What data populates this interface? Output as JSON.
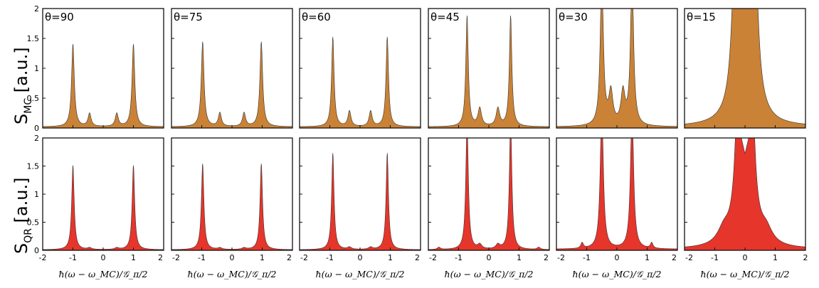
{
  "figure": {
    "x_axis_label": "ħ(ω − ω_MC)/𝒢_π/2",
    "rows": [
      {
        "id": "MC",
        "y_label_main": "S",
        "y_label_sub": "MC",
        "y_label_unit": " [a.u.]",
        "color": "#c98236"
      },
      {
        "id": "QR",
        "y_label_main": "S",
        "y_label_sub": "QR",
        "y_label_unit": " [a.u.]",
        "color": "#e6352b"
      }
    ],
    "x_tick_labels": [
      "-2",
      "-1",
      "0",
      "1",
      "2"
    ],
    "y_tick_labels": [
      "0",
      "0.5",
      "1",
      "1.5",
      "2"
    ]
  },
  "chart_data": [
    {
      "type": "area",
      "row": "MC",
      "theta_label": "θ=90",
      "xlim": [
        -2,
        2
      ],
      "ylim": [
        0,
        2
      ],
      "peaks": [
        {
          "x": -1.0,
          "height": 1.38,
          "width": 0.055
        },
        {
          "x": 1.0,
          "height": 1.38,
          "width": 0.055
        },
        {
          "x": -0.45,
          "height": 0.22,
          "width": 0.06
        },
        {
          "x": 0.45,
          "height": 0.22,
          "width": 0.06
        }
      ],
      "baseline": 0.02
    },
    {
      "type": "area",
      "row": "MC",
      "theta_label": "θ=75",
      "xlim": [
        -2,
        2
      ],
      "ylim": [
        0,
        2
      ],
      "peaks": [
        {
          "x": -0.97,
          "height": 1.42,
          "width": 0.055
        },
        {
          "x": 0.97,
          "height": 1.42,
          "width": 0.055
        },
        {
          "x": -0.4,
          "height": 0.23,
          "width": 0.06
        },
        {
          "x": 0.4,
          "height": 0.23,
          "width": 0.06
        }
      ],
      "baseline": 0.02
    },
    {
      "type": "area",
      "row": "MC",
      "theta_label": "θ=60",
      "xlim": [
        -2,
        2
      ],
      "ylim": [
        0,
        2
      ],
      "peaks": [
        {
          "x": -0.9,
          "height": 1.5,
          "width": 0.05
        },
        {
          "x": 0.9,
          "height": 1.5,
          "width": 0.05
        },
        {
          "x": -0.35,
          "height": 0.26,
          "width": 0.06
        },
        {
          "x": 0.35,
          "height": 0.26,
          "width": 0.06
        }
      ],
      "baseline": 0.02
    },
    {
      "type": "area",
      "row": "MC",
      "theta_label": "θ=45",
      "xlim": [
        -2,
        2
      ],
      "ylim": [
        0,
        2
      ],
      "peaks": [
        {
          "x": -0.72,
          "height": 1.85,
          "width": 0.05
        },
        {
          "x": 0.72,
          "height": 1.85,
          "width": 0.05
        },
        {
          "x": -0.3,
          "height": 0.3,
          "width": 0.07
        },
        {
          "x": 0.3,
          "height": 0.3,
          "width": 0.07
        }
      ],
      "baseline": 0.02
    },
    {
      "type": "area",
      "row": "MC",
      "theta_label": "θ=30",
      "xlim": [
        -2,
        2
      ],
      "ylim": [
        0,
        2
      ],
      "peaks": [
        {
          "x": -0.5,
          "height": 2.6,
          "width": 0.06
        },
        {
          "x": 0.5,
          "height": 2.6,
          "width": 0.06
        },
        {
          "x": -0.2,
          "height": 0.55,
          "width": 0.08
        },
        {
          "x": 0.2,
          "height": 0.55,
          "width": 0.08
        }
      ],
      "baseline": 0.02
    },
    {
      "type": "area",
      "row": "MC",
      "theta_label": "θ=15",
      "xlim": [
        -2,
        2
      ],
      "ylim": [
        0,
        2
      ],
      "peaks": [
        {
          "x": -0.28,
          "height": 4.0,
          "width": 0.12
        },
        {
          "x": 0.28,
          "height": 4.0,
          "width": 0.12
        },
        {
          "x": 0.0,
          "height": 3.0,
          "width": 0.15
        }
      ],
      "baseline": 0.02
    },
    {
      "type": "area",
      "row": "QR",
      "theta_label": "",
      "xlim": [
        -2,
        2
      ],
      "ylim": [
        0,
        2
      ],
      "peaks": [
        {
          "x": -1.0,
          "height": 1.5,
          "width": 0.05
        },
        {
          "x": 1.0,
          "height": 1.5,
          "width": 0.05
        },
        {
          "x": -0.45,
          "height": 0.03,
          "width": 0.08
        },
        {
          "x": 0.45,
          "height": 0.03,
          "width": 0.08
        }
      ],
      "baseline": 0.01
    },
    {
      "type": "area",
      "row": "QR",
      "theta_label": "",
      "xlim": [
        -2,
        2
      ],
      "ylim": [
        0,
        2
      ],
      "peaks": [
        {
          "x": -0.97,
          "height": 1.53,
          "width": 0.05
        },
        {
          "x": 0.97,
          "height": 1.53,
          "width": 0.05
        },
        {
          "x": -0.4,
          "height": 0.03,
          "width": 0.08
        },
        {
          "x": 0.4,
          "height": 0.03,
          "width": 0.08
        }
      ],
      "baseline": 0.01
    },
    {
      "type": "area",
      "row": "QR",
      "theta_label": "",
      "xlim": [
        -2,
        2
      ],
      "ylim": [
        0,
        2
      ],
      "peaks": [
        {
          "x": -0.9,
          "height": 1.72,
          "width": 0.048
        },
        {
          "x": 0.9,
          "height": 1.72,
          "width": 0.048
        },
        {
          "x": -0.35,
          "height": 0.04,
          "width": 0.08
        },
        {
          "x": 0.35,
          "height": 0.04,
          "width": 0.08
        }
      ],
      "baseline": 0.01
    },
    {
      "type": "area",
      "row": "QR",
      "theta_label": "",
      "xlim": [
        -2,
        2
      ],
      "ylim": [
        0,
        2
      ],
      "peaks": [
        {
          "x": -0.72,
          "height": 2.3,
          "width": 0.05
        },
        {
          "x": 0.72,
          "height": 2.3,
          "width": 0.05
        },
        {
          "x": -1.65,
          "height": 0.04,
          "width": 0.06
        },
        {
          "x": 1.65,
          "height": 0.04,
          "width": 0.06
        },
        {
          "x": -0.3,
          "height": 0.08,
          "width": 0.08
        },
        {
          "x": 0.3,
          "height": 0.08,
          "width": 0.08
        }
      ],
      "baseline": 0.01
    },
    {
      "type": "area",
      "row": "QR",
      "theta_label": "",
      "xlim": [
        -2,
        2
      ],
      "ylim": [
        0,
        2
      ],
      "peaks": [
        {
          "x": -0.5,
          "height": 2.6,
          "width": 0.06
        },
        {
          "x": 0.5,
          "height": 2.6,
          "width": 0.06
        },
        {
          "x": -1.15,
          "height": 0.1,
          "width": 0.05
        },
        {
          "x": 1.15,
          "height": 0.1,
          "width": 0.05
        }
      ],
      "baseline": 0.02
    },
    {
      "type": "area",
      "row": "QR",
      "theta_label": "",
      "xlim": [
        -2,
        2
      ],
      "ylim": [
        0,
        2
      ],
      "peaks": [
        {
          "x": -0.18,
          "height": 4.0,
          "width": 0.12
        },
        {
          "x": 0.18,
          "height": 4.0,
          "width": 0.12
        },
        {
          "x": -0.7,
          "height": 0.25,
          "width": 0.25
        },
        {
          "x": 0.7,
          "height": 0.25,
          "width": 0.25
        }
      ],
      "baseline": 0.02,
      "dip_x": 0.0,
      "dip_y": 1.72
    }
  ]
}
